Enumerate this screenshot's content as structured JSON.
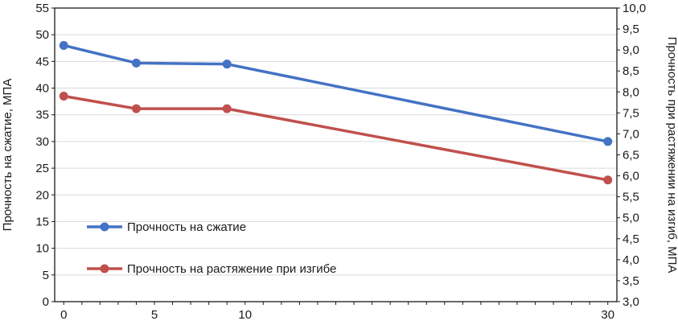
{
  "chart_data": {
    "type": "line",
    "x": [
      0,
      4,
      9,
      30
    ],
    "series": [
      {
        "name": "Прочность на сжатие",
        "axis": "left",
        "color": "#4472C4",
        "values": [
          48,
          44.7,
          44.5,
          30
        ]
      },
      {
        "name": "Прочность на растяжение при изгибе",
        "axis": "right",
        "color": "#C0504D",
        "values": [
          7.9,
          7.6,
          7.6,
          5.9
        ]
      }
    ],
    "x_axis": {
      "min": 0,
      "max": 30,
      "tick_values": [
        0,
        5,
        10,
        30
      ],
      "tick_labels": [
        "0",
        "5",
        "10",
        "30"
      ],
      "minor_tick_step": 1
    },
    "left_axis": {
      "label": "Прочность на сжатие, МПА",
      "min": 0,
      "max": 55,
      "step": 5
    },
    "right_axis": {
      "label": "Прочность при растяжении на изгиб, МПА",
      "min": 3.0,
      "max": 10.0,
      "step": 0.5,
      "decimal_separator": ","
    },
    "grid": true,
    "legend_position": "inside-left-bottom",
    "grid_color": "#d9d9d9",
    "axis_color": "#1a1a1a"
  }
}
